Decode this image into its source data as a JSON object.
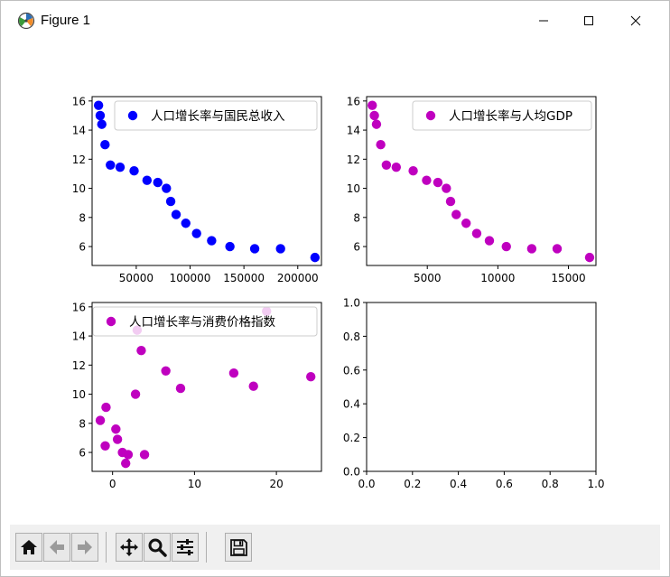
{
  "window": {
    "title": "Figure 1",
    "icon": "matplotlib-figure-icon",
    "buttons": [
      "minimize-icon",
      "maximize-icon",
      "close-icon"
    ]
  },
  "toolbar": {
    "buttons": [
      "home-icon",
      "back-arrow-icon",
      "forward-arrow-icon",
      "pan-icon",
      "zoom-icon",
      "configure-subplots-icon",
      "save-icon"
    ]
  },
  "chart_data": [
    {
      "type": "scatter",
      "title": "",
      "legend": {
        "label": "人口增长率与国民总收入",
        "placement": "top-right"
      },
      "color": "#0000ff",
      "xlim": [
        9000,
        222000
      ],
      "ylim": [
        4.7,
        16.3
      ],
      "xticks": [
        50000,
        100000,
        150000,
        200000
      ],
      "xticklabels": [
        "50000",
        "100000",
        "150000",
        "200000"
      ],
      "yticks": [
        6,
        8,
        10,
        12,
        14,
        16
      ],
      "yticklabels": [
        "6",
        "8",
        "10",
        "12",
        "14",
        "16"
      ],
      "points": [
        [
          15000,
          15.7
        ],
        [
          16500,
          15.0
        ],
        [
          18000,
          14.4
        ],
        [
          21000,
          13.0
        ],
        [
          26000,
          11.6
        ],
        [
          35000,
          11.45
        ],
        [
          48000,
          11.2
        ],
        [
          60000,
          10.55
        ],
        [
          70000,
          10.4
        ],
        [
          78000,
          10.0
        ],
        [
          82000,
          9.1
        ],
        [
          87000,
          8.2
        ],
        [
          96000,
          7.6
        ],
        [
          106000,
          6.9
        ],
        [
          120000,
          6.4
        ],
        [
          137000,
          6.0
        ],
        [
          160000,
          5.85
        ],
        [
          184000,
          5.85
        ],
        [
          216000,
          5.25
        ]
      ]
    },
    {
      "type": "scatter",
      "title": "",
      "legend": {
        "label": "人口增长率与人均GDP",
        "placement": "top-right"
      },
      "color": "#bf00bf",
      "xlim": [
        700,
        16950
      ],
      "ylim": [
        4.7,
        16.3
      ],
      "xticks": [
        5000,
        10000,
        15000
      ],
      "xticklabels": [
        "5000",
        "10000",
        "15000"
      ],
      "yticks": [
        6,
        8,
        10,
        12,
        14,
        16
      ],
      "yticklabels": [
        "6",
        "8",
        "10",
        "12",
        "14",
        "16"
      ],
      "points": [
        [
          1100,
          15.7
        ],
        [
          1250,
          15.0
        ],
        [
          1400,
          14.4
        ],
        [
          1700,
          13.0
        ],
        [
          2100,
          11.6
        ],
        [
          2800,
          11.45
        ],
        [
          4000,
          11.2
        ],
        [
          4950,
          10.55
        ],
        [
          5750,
          10.4
        ],
        [
          6350,
          10.0
        ],
        [
          6650,
          9.1
        ],
        [
          7050,
          8.2
        ],
        [
          7750,
          7.6
        ],
        [
          8500,
          6.9
        ],
        [
          9400,
          6.4
        ],
        [
          10600,
          6.0
        ],
        [
          12400,
          5.85
        ],
        [
          14200,
          5.85
        ],
        [
          16500,
          5.25
        ]
      ]
    },
    {
      "type": "scatter",
      "title": "",
      "legend": {
        "label": "人口增长率与消费价格指数",
        "placement": "top-right"
      },
      "color": "#bf00bf",
      "xlim": [
        -2.5,
        25.5
      ],
      "ylim": [
        4.7,
        16.3
      ],
      "xticks": [
        0,
        10,
        20
      ],
      "xticklabels": [
        "0",
        "10",
        "20"
      ],
      "yticks": [
        6,
        8,
        10,
        12,
        14,
        16
      ],
      "yticklabels": [
        "6",
        "8",
        "10",
        "12",
        "14",
        "16"
      ],
      "points": [
        [
          18.8,
          15.7
        ],
        [
          3.0,
          14.4
        ],
        [
          3.5,
          13.0
        ],
        [
          6.5,
          11.6
        ],
        [
          14.8,
          11.45
        ],
        [
          24.2,
          11.2
        ],
        [
          17.2,
          10.55
        ],
        [
          8.3,
          10.4
        ],
        [
          2.8,
          10.0
        ],
        [
          -0.8,
          9.1
        ],
        [
          -1.5,
          8.2
        ],
        [
          0.4,
          7.6
        ],
        [
          0.6,
          6.9
        ],
        [
          -0.9,
          6.45
        ],
        [
          1.2,
          6.0
        ],
        [
          1.9,
          5.85
        ],
        [
          3.9,
          5.85
        ],
        [
          1.6,
          5.25
        ]
      ]
    },
    {
      "type": "scatter",
      "title": "",
      "xlim": [
        0,
        1
      ],
      "ylim": [
        0,
        1
      ],
      "xticks": [
        0,
        0.2,
        0.4,
        0.6,
        0.8,
        1.0
      ],
      "xticklabels": [
        "0.0",
        "0.2",
        "0.4",
        "0.6",
        "0.8",
        "1.0"
      ],
      "yticks": [
        0,
        0.2,
        0.4,
        0.6,
        0.8,
        1.0
      ],
      "yticklabels": [
        "0.0",
        "0.2",
        "0.4",
        "0.6",
        "0.8",
        "1.0"
      ],
      "points": []
    }
  ]
}
